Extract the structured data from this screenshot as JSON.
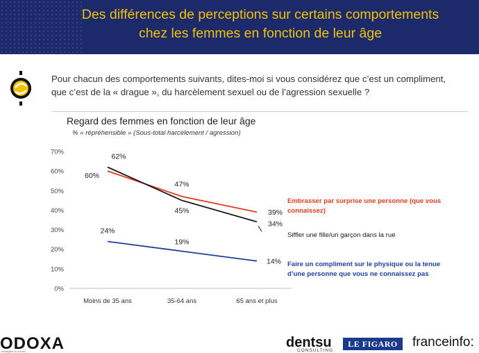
{
  "header": {
    "title_line1": "Des différences de perceptions sur certains comportements",
    "title_line2": "chez les femmes en fonction de leur âge"
  },
  "question": {
    "line1": "Pour chacun des comportements suivants, dites-moi si vous considérez que c’est un compliment,",
    "line2": "que c’est de la « drague », du harcèlement sexuel ou de l’agression sexuelle ?"
  },
  "chart_data": {
    "type": "line",
    "title": "Regard des femmes en fonction de leur âge",
    "subtitle": "% « répréhensible » (Sous-total harcèlement / agression)",
    "categories": [
      "Moins de 35 ans",
      "35-64 ans",
      "65 ans et plus"
    ],
    "y_ticks": [
      "0%",
      "10%",
      "20%",
      "30%",
      "40%",
      "50%",
      "60%",
      "70%"
    ],
    "ylim": [
      0,
      70
    ],
    "grid": false,
    "series": [
      {
        "name": "Embrasser par surprise une personne (que vous connaissez)",
        "label_line1": "Embrasser par surprise une personne (que vous",
        "label_line2": "connaissez)",
        "color": "#e03a1e",
        "values": [
          60,
          47,
          39
        ],
        "value_labels": [
          "60%",
          "47%",
          "39%"
        ]
      },
      {
        "name": "Siffler une fille/un garçon dans la rue",
        "label_line1": "Siffler une fille/un garçon dans la rue",
        "label_line2": "",
        "color": "#1a1a1a",
        "values": [
          62,
          45,
          34
        ],
        "value_labels": [
          "62%",
          "45%",
          "34%"
        ]
      },
      {
        "name": "Faire un compliment sur le physique ou la tenue d’une personne que vous ne connaissez pas",
        "label_line1": "Faire un compliment sur le physique ou la tenue",
        "label_line2": "d’une personne que vous ne connaissez pas",
        "color": "#1f3fa0",
        "values": [
          24,
          19,
          14
        ],
        "value_labels": [
          "24%",
          "19%",
          "14%"
        ]
      }
    ]
  },
  "footer": {
    "odoxa": "ODOXA",
    "odoxa_tagline": "stratégies & conseil",
    "dentsu": "dentsu",
    "dentsu_sub": "CONSULTING",
    "figaro": "LE FIGARO",
    "franceinfo": "franceinfo:"
  }
}
